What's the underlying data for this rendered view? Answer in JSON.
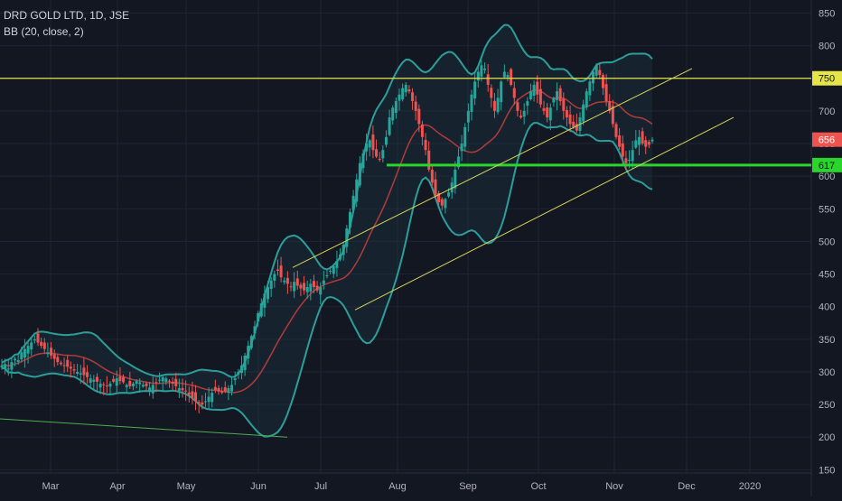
{
  "legend": {
    "symbol_line": "DRD GOLD LTD, 1D, JSE",
    "indicator_line": "BB (20, close, 2)"
  },
  "colors": {
    "background": "#131722",
    "grid": "#1f2433",
    "axis_text": "#b2b5be",
    "candle_up": "#26a69a",
    "candle_down": "#ef5350",
    "bb_band": "#2c9e9a",
    "bb_fill": "#1e3a48",
    "bb_basis": "#b33a3a",
    "trend_yellow": "#d4d45a",
    "resistance_yellow": "#e5e54a",
    "support_green": "#2bd62b",
    "lower_green": "#4caf50",
    "price_badge": "#ef5350",
    "badge_750": "#e5e54a",
    "badge_617": "#2bd62b"
  },
  "chart_data": {
    "type": "candlestick",
    "title": "DRD GOLD LTD, 1D, JSE",
    "indicator": "BB (20, close, 2)",
    "x_ticks": [
      "Mar",
      "Apr",
      "May",
      "Jun",
      "Jul",
      "Aug",
      "Sep",
      "Oct",
      "Nov",
      "Dec",
      "2020"
    ],
    "y_ticks": [
      150,
      200,
      250,
      300,
      350,
      400,
      450,
      500,
      550,
      600,
      650,
      700,
      750,
      800,
      850
    ],
    "ylim": [
      145,
      870
    ],
    "price_labels": [
      {
        "value": 750,
        "text": "750",
        "color_key": "badge_750"
      },
      {
        "value": 656,
        "text": "656",
        "color_key": "price_badge"
      },
      {
        "value": 617,
        "text": "617",
        "color_key": "badge_617"
      }
    ],
    "closes_approx": [
      310,
      312,
      305,
      315,
      320,
      318,
      330,
      335,
      340,
      345,
      350,
      345,
      340,
      335,
      330,
      325,
      320,
      315,
      312,
      310,
      308,
      305,
      302,
      300,
      298,
      295,
      292,
      290,
      288,
      285,
      282,
      280,
      278,
      282,
      285,
      290,
      286,
      284,
      280,
      278,
      282,
      286,
      284,
      280,
      278,
      276,
      280,
      284,
      288,
      292,
      290,
      286,
      282,
      278,
      275,
      272,
      270,
      265,
      260,
      255,
      252,
      250,
      255,
      262,
      268,
      272,
      270,
      268,
      270,
      275,
      280,
      290,
      300,
      310,
      325,
      340,
      355,
      370,
      390,
      405,
      420,
      430,
      440,
      450,
      455,
      445,
      440,
      435,
      430,
      438,
      432,
      428,
      425,
      430,
      435,
      430,
      425,
      430,
      440,
      448,
      455,
      462,
      470,
      480,
      495,
      520,
      545,
      570,
      595,
      620,
      635,
      650,
      655,
      640,
      630,
      625,
      640,
      660,
      690,
      705,
      715,
      725,
      735,
      740,
      730,
      715,
      700,
      680,
      660,
      640,
      610,
      590,
      570,
      560,
      555,
      565,
      575,
      590,
      610,
      630,
      650,
      675,
      700,
      725,
      745,
      760,
      770,
      765,
      740,
      720,
      700,
      720,
      745,
      760,
      755,
      740,
      720,
      700,
      690,
      700,
      715,
      730,
      740,
      725,
      710,
      700,
      690,
      705,
      720,
      730,
      715,
      700,
      690,
      680,
      675,
      670,
      690,
      710,
      730,
      745,
      760,
      770,
      755,
      735,
      715,
      700,
      680,
      660,
      645,
      630,
      620,
      625,
      640,
      655,
      660,
      650,
      645,
      648,
      656
    ],
    "trendlines": [
      {
        "name": "",
        "from": {
          "x": "Jun",
          "y": 460
        },
        "to": {
          "x": "Dec",
          "y": 765
        },
        "color_key": "trend_yellow"
      },
      {
        "name": "",
        "from": {
          "x": "Jul",
          "y": 395
        },
        "to": {
          "x": "2020",
          "y": 690
        },
        "color_key": "trend_yellow"
      },
      {
        "name": "",
        "from": {
          "x": "Feb",
          "y": 228
        },
        "to": {
          "x": "Jun",
          "y": 200
        },
        "color_key": "lower_green"
      }
    ],
    "horizontal_levels": [
      {
        "value": 750,
        "color_key": "resistance_yellow"
      },
      {
        "value": 617,
        "color_key": "support_green"
      }
    ]
  }
}
